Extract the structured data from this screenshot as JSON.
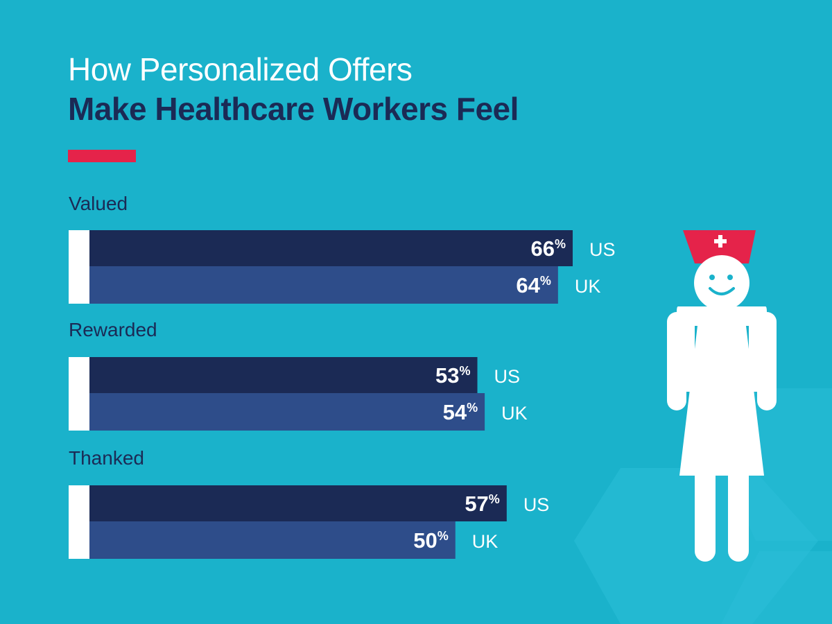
{
  "title": {
    "line1": "How Personalized Offers",
    "line2": "Make Healthcare Workers Feel"
  },
  "colors": {
    "background": "#1ab2cb",
    "us": "#1b2a55",
    "uk": "#2e4d8a",
    "accent": "#e5234a",
    "stub": "#ffffff"
  },
  "chart_data": {
    "type": "bar",
    "orientation": "horizontal",
    "unit": "%",
    "categories": [
      "Valued",
      "Rewarded",
      "Thanked"
    ],
    "series": [
      {
        "name": "US",
        "values": [
          66,
          53,
          57
        ]
      },
      {
        "name": "UK",
        "values": [
          64,
          54,
          50
        ]
      }
    ],
    "title": "How Personalized Offers Make Healthcare Workers Feel",
    "xlim": [
      0,
      66
    ],
    "grid": false,
    "legend": "none"
  },
  "illustration": {
    "name": "nurse-icon",
    "cap_symbol": "plus-icon"
  }
}
